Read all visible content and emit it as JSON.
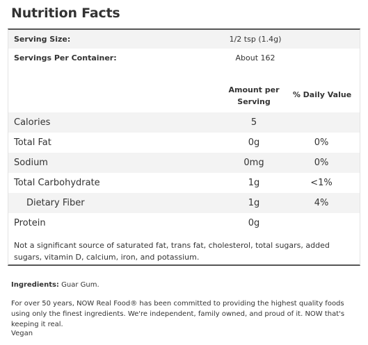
{
  "title": "Nutrition Facts",
  "serving": {
    "size_label": "Serving Size:",
    "size_value": "1/2 tsp (1.4g)",
    "per_container_label": "Servings Per Container:",
    "per_container_value": "About 162"
  },
  "headers": {
    "amount_line1": "Amount per",
    "amount_line2": "Serving",
    "daily_value": "% Daily Value"
  },
  "nutrients": [
    {
      "name": "Calories",
      "amount": "5",
      "dv": ""
    },
    {
      "name": "Total Fat",
      "amount": "0g",
      "dv": "0%"
    },
    {
      "name": "Sodium",
      "amount": "0mg",
      "dv": "0%"
    },
    {
      "name": "Total Carbohydrate",
      "amount": "1g",
      "dv": "<1%"
    },
    {
      "name": "Dietary Fiber",
      "amount": "1g",
      "dv": "4%"
    },
    {
      "name": "Protein",
      "amount": "0g",
      "dv": ""
    }
  ],
  "footnote": "Not a significant source of saturated fat, trans fat, cholesterol, total sugars, added sugars, vitamin D, calcium, iron, and potassium.",
  "ingredients": {
    "label": "Ingredients:",
    "value": "Guar Gum."
  },
  "about": "For over 50 years, NOW Real Food® has been committed to providing the highest quality foods using only the finest ingredients. We're independent, family owned, and proud of it. NOW that's keeping it real.",
  "tag": "Vegan"
}
